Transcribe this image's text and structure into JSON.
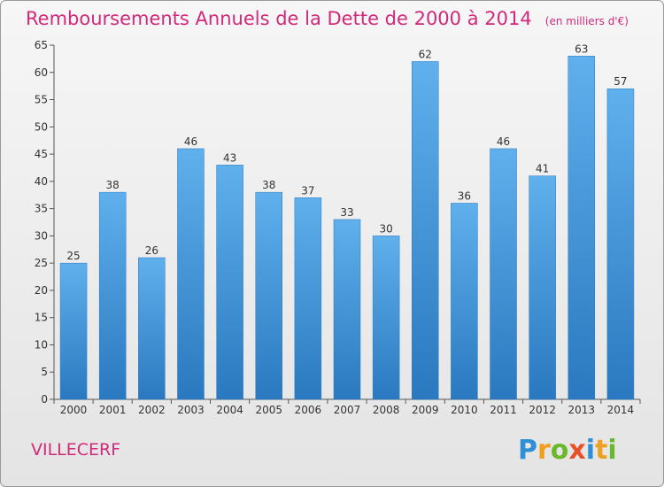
{
  "chart_data": {
    "type": "bar",
    "title": "Remboursements Annuels de la Dette de 2000 à 2014",
    "unit_note": "(en milliers d'€)",
    "categories": [
      "2000",
      "2001",
      "2002",
      "2003",
      "2004",
      "2005",
      "2006",
      "2007",
      "2008",
      "2009",
      "2010",
      "2011",
      "2012",
      "2013",
      "2014"
    ],
    "values": [
      25,
      38,
      26,
      46,
      43,
      38,
      37,
      33,
      30,
      62,
      36,
      46,
      41,
      63,
      57
    ],
    "ylim": [
      0,
      65
    ],
    "yticks": [
      0,
      5,
      10,
      15,
      20,
      25,
      30,
      35,
      40,
      45,
      50,
      55,
      60,
      65
    ],
    "xlabel": "",
    "ylabel": "",
    "grid": false,
    "bar_color": "#3d8fd4"
  },
  "commune_name": "VILLECERF",
  "logo": {
    "text": "Proxiti",
    "letters": [
      {
        "ch": "P",
        "color": "#2e8fd6"
      },
      {
        "ch": "r",
        "color": "#f0a020"
      },
      {
        "ch": "o",
        "color": "#6ab82c"
      },
      {
        "ch": "x",
        "color": "#e8502a"
      },
      {
        "ch": "i",
        "color": "#2e8fd6"
      },
      {
        "ch": "t",
        "color": "#f0a020"
      },
      {
        "ch": "i",
        "color": "#6ab82c"
      }
    ]
  }
}
